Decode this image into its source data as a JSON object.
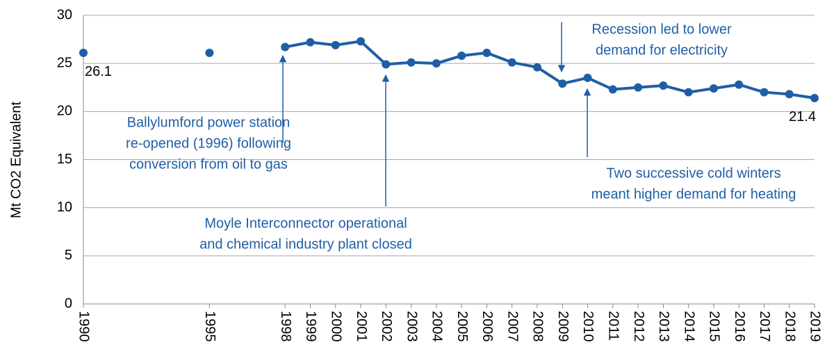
{
  "chart_data": {
    "type": "line",
    "y_label": "Mt CO2 Equivalent",
    "x": [
      1990,
      null,
      1995,
      null,
      1998,
      1999,
      2000,
      2001,
      2002,
      2003,
      2004,
      2005,
      2006,
      2007,
      2008,
      2009,
      2010,
      2011,
      2012,
      2013,
      2014,
      2015,
      2016,
      2017,
      2018,
      2019
    ],
    "series": [
      {
        "color": "#1f5ea6",
        "values": [
          26.1,
          null,
          26.1,
          null,
          26.7,
          27.2,
          26.9,
          27.3,
          24.9,
          25.1,
          25.0,
          25.8,
          26.1,
          25.1,
          24.6,
          22.9,
          23.5,
          22.3,
          22.5,
          22.7,
          22.0,
          22.4,
          22.8,
          22.0,
          21.8,
          21.4
        ]
      }
    ],
    "xlim": [
      1990,
      2019
    ],
    "xticks": [
      1990,
      1995,
      1998,
      1999,
      2000,
      2001,
      2002,
      2003,
      2004,
      2005,
      2006,
      2007,
      2008,
      2009,
      2010,
      2011,
      2012,
      2013,
      2014,
      2015,
      2016,
      2017,
      2018,
      2019
    ],
    "ylim": [
      0,
      30
    ],
    "yticks": [
      0,
      5,
      10,
      15,
      20,
      25,
      30
    ],
    "grid": true,
    "annotations": [
      {
        "lines": [
          "Ballylumford power station",
          "re-opened (1996) following",
          "conversion from oil to gas"
        ]
      },
      {
        "lines": [
          "Moyle Interconnector operational",
          "and chemical industry plant closed"
        ]
      },
      {
        "lines": [
          "Recession led to lower",
          "demand for electricity"
        ]
      },
      {
        "lines": [
          "Two successive cold winters",
          "meant higher demand for heating"
        ]
      }
    ]
  }
}
